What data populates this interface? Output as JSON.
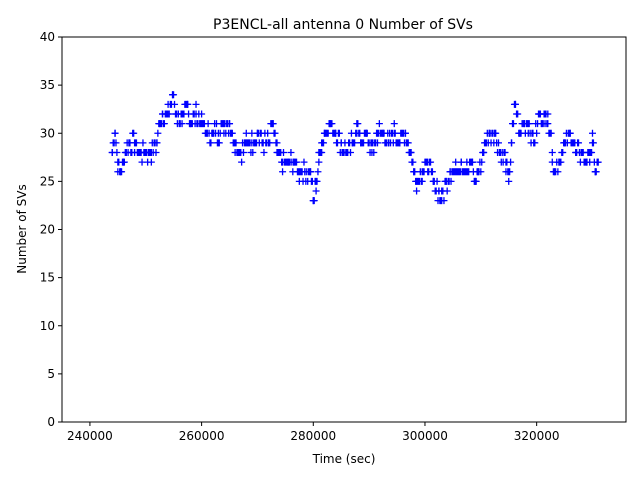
{
  "chart_data": {
    "type": "scatter",
    "title": "P3ENCL-all antenna 0 Number of SVs",
    "xlabel": "Time (sec)",
    "ylabel": "Number of SVs",
    "xlim": [
      235000,
      336000
    ],
    "ylim": [
      0,
      40
    ],
    "xticks": [
      240000,
      260000,
      280000,
      300000,
      320000
    ],
    "yticks": [
      0,
      5,
      10,
      15,
      20,
      25,
      30,
      35,
      40
    ],
    "grid": false,
    "marker": "+",
    "color": "#0000ff",
    "series": [
      {
        "name": "Number of SVs",
        "segments": [
          [
            244000,
            28
          ],
          [
            244500,
            30
          ],
          [
            245000,
            27
          ],
          [
            245500,
            26
          ],
          [
            246000,
            27
          ],
          [
            246500,
            28
          ],
          [
            247000,
            29
          ],
          [
            248000,
            29
          ],
          [
            249000,
            28
          ],
          [
            250000,
            28
          ],
          [
            251000,
            28
          ],
          [
            252000,
            29
          ],
          [
            252500,
            31
          ],
          [
            253000,
            32
          ],
          [
            254000,
            32
          ],
          [
            254800,
            34
          ],
          [
            255500,
            32
          ],
          [
            256500,
            31
          ],
          [
            257500,
            33
          ],
          [
            258000,
            31
          ],
          [
            259000,
            32
          ],
          [
            260000,
            31
          ],
          [
            261000,
            30
          ],
          [
            262000,
            30
          ],
          [
            263000,
            30
          ],
          [
            264000,
            31
          ],
          [
            265000,
            31
          ],
          [
            266000,
            29
          ],
          [
            267000,
            28
          ],
          [
            268000,
            29
          ],
          [
            269000,
            29
          ],
          [
            270000,
            30
          ],
          [
            271000,
            29
          ],
          [
            272000,
            29
          ],
          [
            272800,
            31
          ],
          [
            273500,
            28
          ],
          [
            274500,
            27
          ],
          [
            275500,
            27
          ],
          [
            276500,
            27
          ],
          [
            277500,
            26
          ],
          [
            278500,
            26
          ],
          [
            279500,
            26
          ],
          [
            280000,
            23
          ],
          [
            280500,
            25
          ],
          [
            281000,
            27
          ],
          [
            281500,
            29
          ],
          [
            282000,
            30
          ],
          [
            283000,
            31
          ],
          [
            284000,
            30
          ],
          [
            285000,
            29
          ],
          [
            286000,
            28
          ],
          [
            287000,
            29
          ],
          [
            287800,
            31
          ],
          [
            288500,
            29
          ],
          [
            289500,
            30
          ],
          [
            290500,
            28
          ],
          [
            291500,
            30
          ],
          [
            292500,
            30
          ],
          [
            293500,
            29
          ],
          [
            294500,
            30
          ],
          [
            295500,
            29
          ],
          [
            296500,
            30
          ],
          [
            297500,
            28
          ],
          [
            298000,
            26
          ],
          [
            298500,
            25
          ],
          [
            299500,
            26
          ],
          [
            300500,
            27
          ],
          [
            301500,
            25
          ],
          [
            302500,
            24
          ],
          [
            303000,
            23
          ],
          [
            303800,
            25
          ],
          [
            304500,
            26
          ],
          [
            305500,
            26
          ],
          [
            306500,
            27
          ],
          [
            307500,
            26
          ],
          [
            308500,
            27
          ],
          [
            309000,
            25
          ],
          [
            309500,
            26
          ],
          [
            310500,
            28
          ],
          [
            311500,
            30
          ],
          [
            312500,
            30
          ],
          [
            313500,
            28
          ],
          [
            314500,
            27
          ],
          [
            315000,
            25
          ],
          [
            315500,
            29
          ],
          [
            316200,
            33
          ],
          [
            317000,
            30
          ],
          [
            317800,
            31
          ],
          [
            318500,
            31
          ],
          [
            319500,
            29
          ],
          [
            320500,
            32
          ],
          [
            321500,
            31
          ],
          [
            322000,
            32
          ],
          [
            322800,
            28
          ],
          [
            323200,
            26
          ],
          [
            324000,
            27
          ],
          [
            325000,
            29
          ],
          [
            326000,
            30
          ],
          [
            327000,
            28
          ],
          [
            328000,
            28
          ],
          [
            329000,
            27
          ],
          [
            329500,
            28
          ],
          [
            330000,
            29
          ],
          [
            330500,
            26
          ],
          [
            331000,
            27
          ]
        ]
      }
    ]
  }
}
